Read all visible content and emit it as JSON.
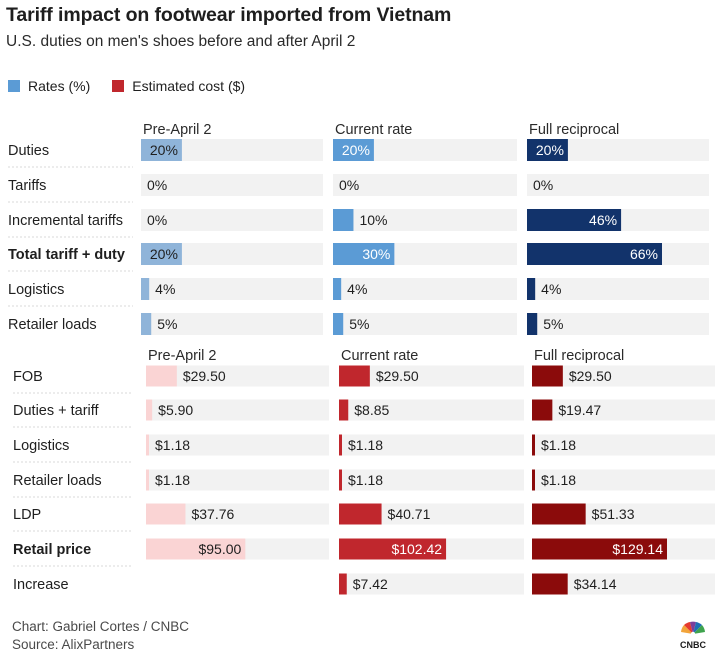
{
  "title": "Tariff impact on footwear imported from Vietnam",
  "subtitle": "U.S. duties on men's shoes before and after April 2",
  "legend": [
    {
      "label": "Rates (%)",
      "color": "#5b9bd5"
    },
    {
      "label": "Estimated cost ($)",
      "color": "#c0272d"
    }
  ],
  "footer": {
    "credit": "Chart: Gabriel Cortes / CNBC",
    "source": "Source: AlixPartners"
  },
  "logo": {
    "text": "CNBC",
    "icon": "peacock-icon"
  },
  "chart_data": [
    {
      "type": "table",
      "unit": "%",
      "columns": [
        "Pre-April 2",
        "Current rate",
        "Full reciprocal"
      ],
      "column_colors": [
        "#8fb4d9",
        "#5b9bd5",
        "#12336b"
      ],
      "track_color": "#f2f2f2",
      "max": 66,
      "rows": [
        {
          "label": "Duties",
          "bold": false,
          "values": [
            20,
            20,
            20
          ],
          "display": [
            "20%",
            "20%",
            "20%"
          ]
        },
        {
          "label": "Tariffs",
          "bold": false,
          "values": [
            0,
            0,
            0
          ],
          "display": [
            "0%",
            "0%",
            "0%"
          ]
        },
        {
          "label": "Incremental tariffs",
          "bold": false,
          "values": [
            0,
            10,
            46
          ],
          "display": [
            "0%",
            "10%",
            "46%"
          ]
        },
        {
          "label": "Total tariff + duty",
          "bold": true,
          "values": [
            20,
            30,
            66
          ],
          "display": [
            "20%",
            "30%",
            "66%"
          ]
        },
        {
          "label": "Logistics",
          "bold": false,
          "values": [
            4,
            4,
            4
          ],
          "display": [
            "4%",
            "4%",
            "4%"
          ]
        },
        {
          "label": "Retailer loads",
          "bold": false,
          "values": [
            5,
            5,
            5
          ],
          "display": [
            "5%",
            "5%",
            "5%"
          ]
        }
      ]
    },
    {
      "type": "table",
      "unit": "$",
      "columns": [
        "Pre-April 2",
        "Current rate",
        "Full reciprocal"
      ],
      "column_colors": [
        "#fad4d4",
        "#c0272d",
        "#8b0b0b"
      ],
      "track_color": "#f2f2f2",
      "max": 129.14,
      "rows": [
        {
          "label": "FOB",
          "bold": false,
          "values": [
            29.5,
            29.5,
            29.5
          ],
          "display": [
            "$29.50",
            "$29.50",
            "$29.50"
          ]
        },
        {
          "label": "Duties + tariff",
          "bold": false,
          "values": [
            5.9,
            8.85,
            19.47
          ],
          "display": [
            "$5.90",
            "$8.85",
            "$19.47"
          ]
        },
        {
          "label": "Logistics",
          "bold": false,
          "values": [
            1.18,
            1.18,
            1.18
          ],
          "display": [
            "$1.18",
            "$1.18",
            "$1.18"
          ]
        },
        {
          "label": "Retailer loads",
          "bold": false,
          "values": [
            1.18,
            1.18,
            1.18
          ],
          "display": [
            "$1.18",
            "$1.18",
            "$1.18"
          ]
        },
        {
          "label": "LDP",
          "bold": false,
          "values": [
            37.76,
            40.71,
            51.33
          ],
          "display": [
            "$37.76",
            "$40.71",
            "$51.33"
          ]
        },
        {
          "label": "Retail price",
          "bold": true,
          "values": [
            95.0,
            102.42,
            129.14
          ],
          "display": [
            "$95.00",
            "$102.42",
            "$129.14"
          ]
        },
        {
          "label": "Increase",
          "bold": false,
          "values": [
            null,
            7.42,
            34.14
          ],
          "display": [
            "",
            "$7.42",
            "$34.14"
          ]
        }
      ]
    }
  ]
}
